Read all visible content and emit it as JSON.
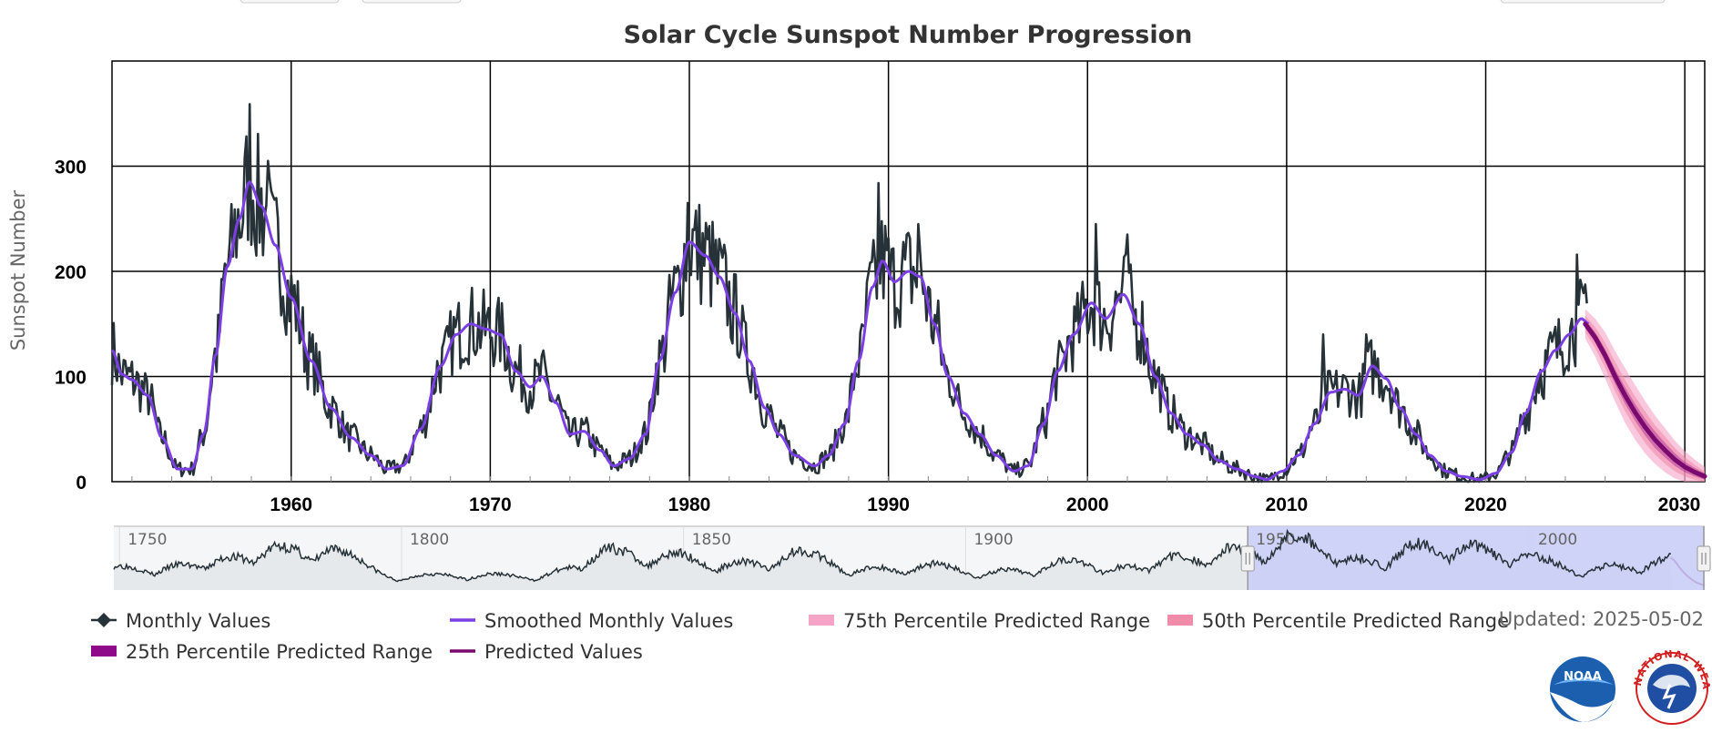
{
  "updated": "Updated: 2025-05-02",
  "logos": {
    "noaa": "NOAA",
    "nws": "NATIONAL WEATHER SERVICE"
  },
  "colors": {
    "monthly": "#263238",
    "smoothed": "#7b3fe4",
    "p75": "#f5a3c7",
    "p50": "#f08caa",
    "p25": "#8e0a8a",
    "predicted": "#7a0a6e",
    "navigator_selection": "#c8ccf7"
  },
  "chart_data": {
    "type": "line",
    "title": "Solar Cycle Sunspot Number Progression",
    "xlabel": "",
    "ylabel": "Sunspot Number",
    "xlim": [
      1951.0,
      2031.0
    ],
    "ylim": [
      0,
      400
    ],
    "x_ticks": [
      1960,
      1970,
      1980,
      1990,
      2000,
      2010,
      2020,
      2030
    ],
    "y_ticks": [
      0,
      100,
      200,
      300
    ],
    "grid": true,
    "legend_position": "bottom",
    "smoothed_anchors": [
      [
        1951.0,
        125
      ],
      [
        1951.5,
        102
      ],
      [
        1952.0,
        97
      ],
      [
        1952.8,
        82
      ],
      [
        1953.5,
        42
      ],
      [
        1954.3,
        12
      ],
      [
        1955.0,
        12
      ],
      [
        1955.6,
        45
      ],
      [
        1956.2,
        120
      ],
      [
        1956.8,
        205
      ],
      [
        1957.4,
        250
      ],
      [
        1957.9,
        285
      ],
      [
        1958.5,
        262
      ],
      [
        1959.2,
        225
      ],
      [
        1960.0,
        175
      ],
      [
        1961.0,
        115
      ],
      [
        1962.0,
        70
      ],
      [
        1963.0,
        42
      ],
      [
        1964.0,
        25
      ],
      [
        1964.8,
        12
      ],
      [
        1965.6,
        15
      ],
      [
        1966.5,
        50
      ],
      [
        1967.5,
        110
      ],
      [
        1968.3,
        140
      ],
      [
        1969.0,
        150
      ],
      [
        1969.8,
        145
      ],
      [
        1970.5,
        140
      ],
      [
        1971.3,
        105
      ],
      [
        1972.0,
        90
      ],
      [
        1972.6,
        100
      ],
      [
        1973.3,
        75
      ],
      [
        1974.0,
        45
      ],
      [
        1974.7,
        48
      ],
      [
        1975.5,
        30
      ],
      [
        1976.2,
        15
      ],
      [
        1977.0,
        22
      ],
      [
        1977.8,
        45
      ],
      [
        1978.5,
        115
      ],
      [
        1979.3,
        180
      ],
      [
        1980.0,
        228
      ],
      [
        1980.8,
        215
      ],
      [
        1981.5,
        195
      ],
      [
        1982.3,
        160
      ],
      [
        1983.0,
        115
      ],
      [
        1983.8,
        70
      ],
      [
        1984.5,
        45
      ],
      [
        1985.3,
        25
      ],
      [
        1986.3,
        15
      ],
      [
        1987.0,
        25
      ],
      [
        1987.8,
        55
      ],
      [
        1988.5,
        115
      ],
      [
        1989.2,
        185
      ],
      [
        1989.7,
        210
      ],
      [
        1990.3,
        190
      ],
      [
        1991.0,
        200
      ],
      [
        1991.6,
        195
      ],
      [
        1992.3,
        150
      ],
      [
        1993.0,
        100
      ],
      [
        1993.8,
        65
      ],
      [
        1994.6,
        45
      ],
      [
        1995.4,
        25
      ],
      [
        1996.3,
        10
      ],
      [
        1997.0,
        15
      ],
      [
        1997.8,
        55
      ],
      [
        1998.5,
        105
      ],
      [
        1999.3,
        140
      ],
      [
        2000.2,
        170
      ],
      [
        2000.9,
        155
      ],
      [
        2001.8,
        178
      ],
      [
        2002.6,
        150
      ],
      [
        2003.4,
        100
      ],
      [
        2004.2,
        65
      ],
      [
        2005.0,
        45
      ],
      [
        2005.8,
        35
      ],
      [
        2006.6,
        20
      ],
      [
        2007.5,
        12
      ],
      [
        2008.4,
        5
      ],
      [
        2009.0,
        2
      ],
      [
        2009.8,
        10
      ],
      [
        2010.6,
        25
      ],
      [
        2011.4,
        55
      ],
      [
        2012.2,
        85
      ],
      [
        2012.9,
        88
      ],
      [
        2013.6,
        82
      ],
      [
        2014.3,
        110
      ],
      [
        2015.0,
        98
      ],
      [
        2015.7,
        70
      ],
      [
        2016.5,
        45
      ],
      [
        2017.2,
        25
      ],
      [
        2018.0,
        10
      ],
      [
        2018.8,
        5
      ],
      [
        2019.7,
        2
      ],
      [
        2020.5,
        8
      ],
      [
        2021.3,
        28
      ],
      [
        2022.0,
        65
      ],
      [
        2022.8,
        105
      ],
      [
        2023.5,
        125
      ],
      [
        2024.2,
        140
      ],
      [
        2024.8,
        155
      ],
      [
        2025.2,
        150
      ]
    ],
    "monthly_note": "Monthly values oscillate around the smoothed curve with peak spikes near 359 (1957.9), 265 (1979.9), 284 (1989.5), 245 (2000.4), 140 (2014.0), 216 (2024.6).",
    "monthly_peaks": [
      [
        1957.9,
        359
      ],
      [
        1958.8,
        305
      ],
      [
        1979.9,
        265
      ],
      [
        1989.5,
        284
      ],
      [
        1991.5,
        245
      ],
      [
        2000.4,
        245
      ],
      [
        2002.0,
        235
      ],
      [
        2011.8,
        140
      ],
      [
        2014.0,
        140
      ],
      [
        2024.6,
        216
      ]
    ],
    "predicted": {
      "x": [
        2025.0,
        2025.5,
        2026.0,
        2026.5,
        2027.0,
        2027.5,
        2028.0,
        2028.5,
        2029.0,
        2029.5,
        2030.0,
        2030.5,
        2031.0
      ],
      "values": [
        150,
        137,
        120,
        100,
        82,
        66,
        52,
        40,
        30,
        21,
        14,
        9,
        5
      ],
      "p25_halfwidth": [
        4,
        5,
        6,
        7,
        8,
        8,
        8,
        8,
        7,
        6,
        5,
        4,
        3
      ],
      "p50_halfwidth": [
        8,
        10,
        12,
        14,
        15,
        15,
        15,
        14,
        13,
        11,
        9,
        7,
        5
      ],
      "p75_halfwidth": [
        14,
        18,
        22,
        24,
        26,
        26,
        25,
        23,
        21,
        18,
        15,
        12,
        9
      ]
    },
    "navigator": {
      "xlim": [
        1749,
        2031
      ],
      "labels": [
        "1750",
        "1800",
        "1850",
        "1900",
        "1950",
        "2000"
      ],
      "label_years": [
        1750,
        1800,
        1850,
        1900,
        1950,
        2000
      ],
      "selected_range": [
        1950,
        2031
      ],
      "cycle_peaks": [
        [
          1750,
          80
        ],
        [
          1761,
          86
        ],
        [
          1769.7,
          116
        ],
        [
          1778.4,
          158
        ],
        [
          1788.1,
          141
        ],
        [
          1805.2,
          49
        ],
        [
          1816.4,
          49
        ],
        [
          1829.9,
          72
        ],
        [
          1837.2,
          147
        ],
        [
          1848.1,
          131
        ],
        [
          1860.1,
          98
        ],
        [
          1870.6,
          140
        ],
        [
          1883.9,
          74
        ],
        [
          1894.1,
          88
        ],
        [
          1907.0,
          64
        ],
        [
          1917.6,
          105
        ],
        [
          1928.4,
          78
        ],
        [
          1937.4,
          119
        ],
        [
          1947.5,
          152
        ],
        [
          1958.2,
          201
        ],
        [
          1968.9,
          111
        ],
        [
          1979.9,
          165
        ],
        [
          1989.6,
          158
        ],
        [
          2000.3,
          120
        ],
        [
          2014.3,
          82
        ],
        [
          2024.8,
          116
        ]
      ]
    },
    "legend": [
      "Monthly Values",
      "Smoothed Monthly Values",
      "75th Percentile Predicted Range",
      "50th Percentile Predicted Range",
      "25th Percentile Predicted Range",
      "Predicted Values"
    ]
  }
}
